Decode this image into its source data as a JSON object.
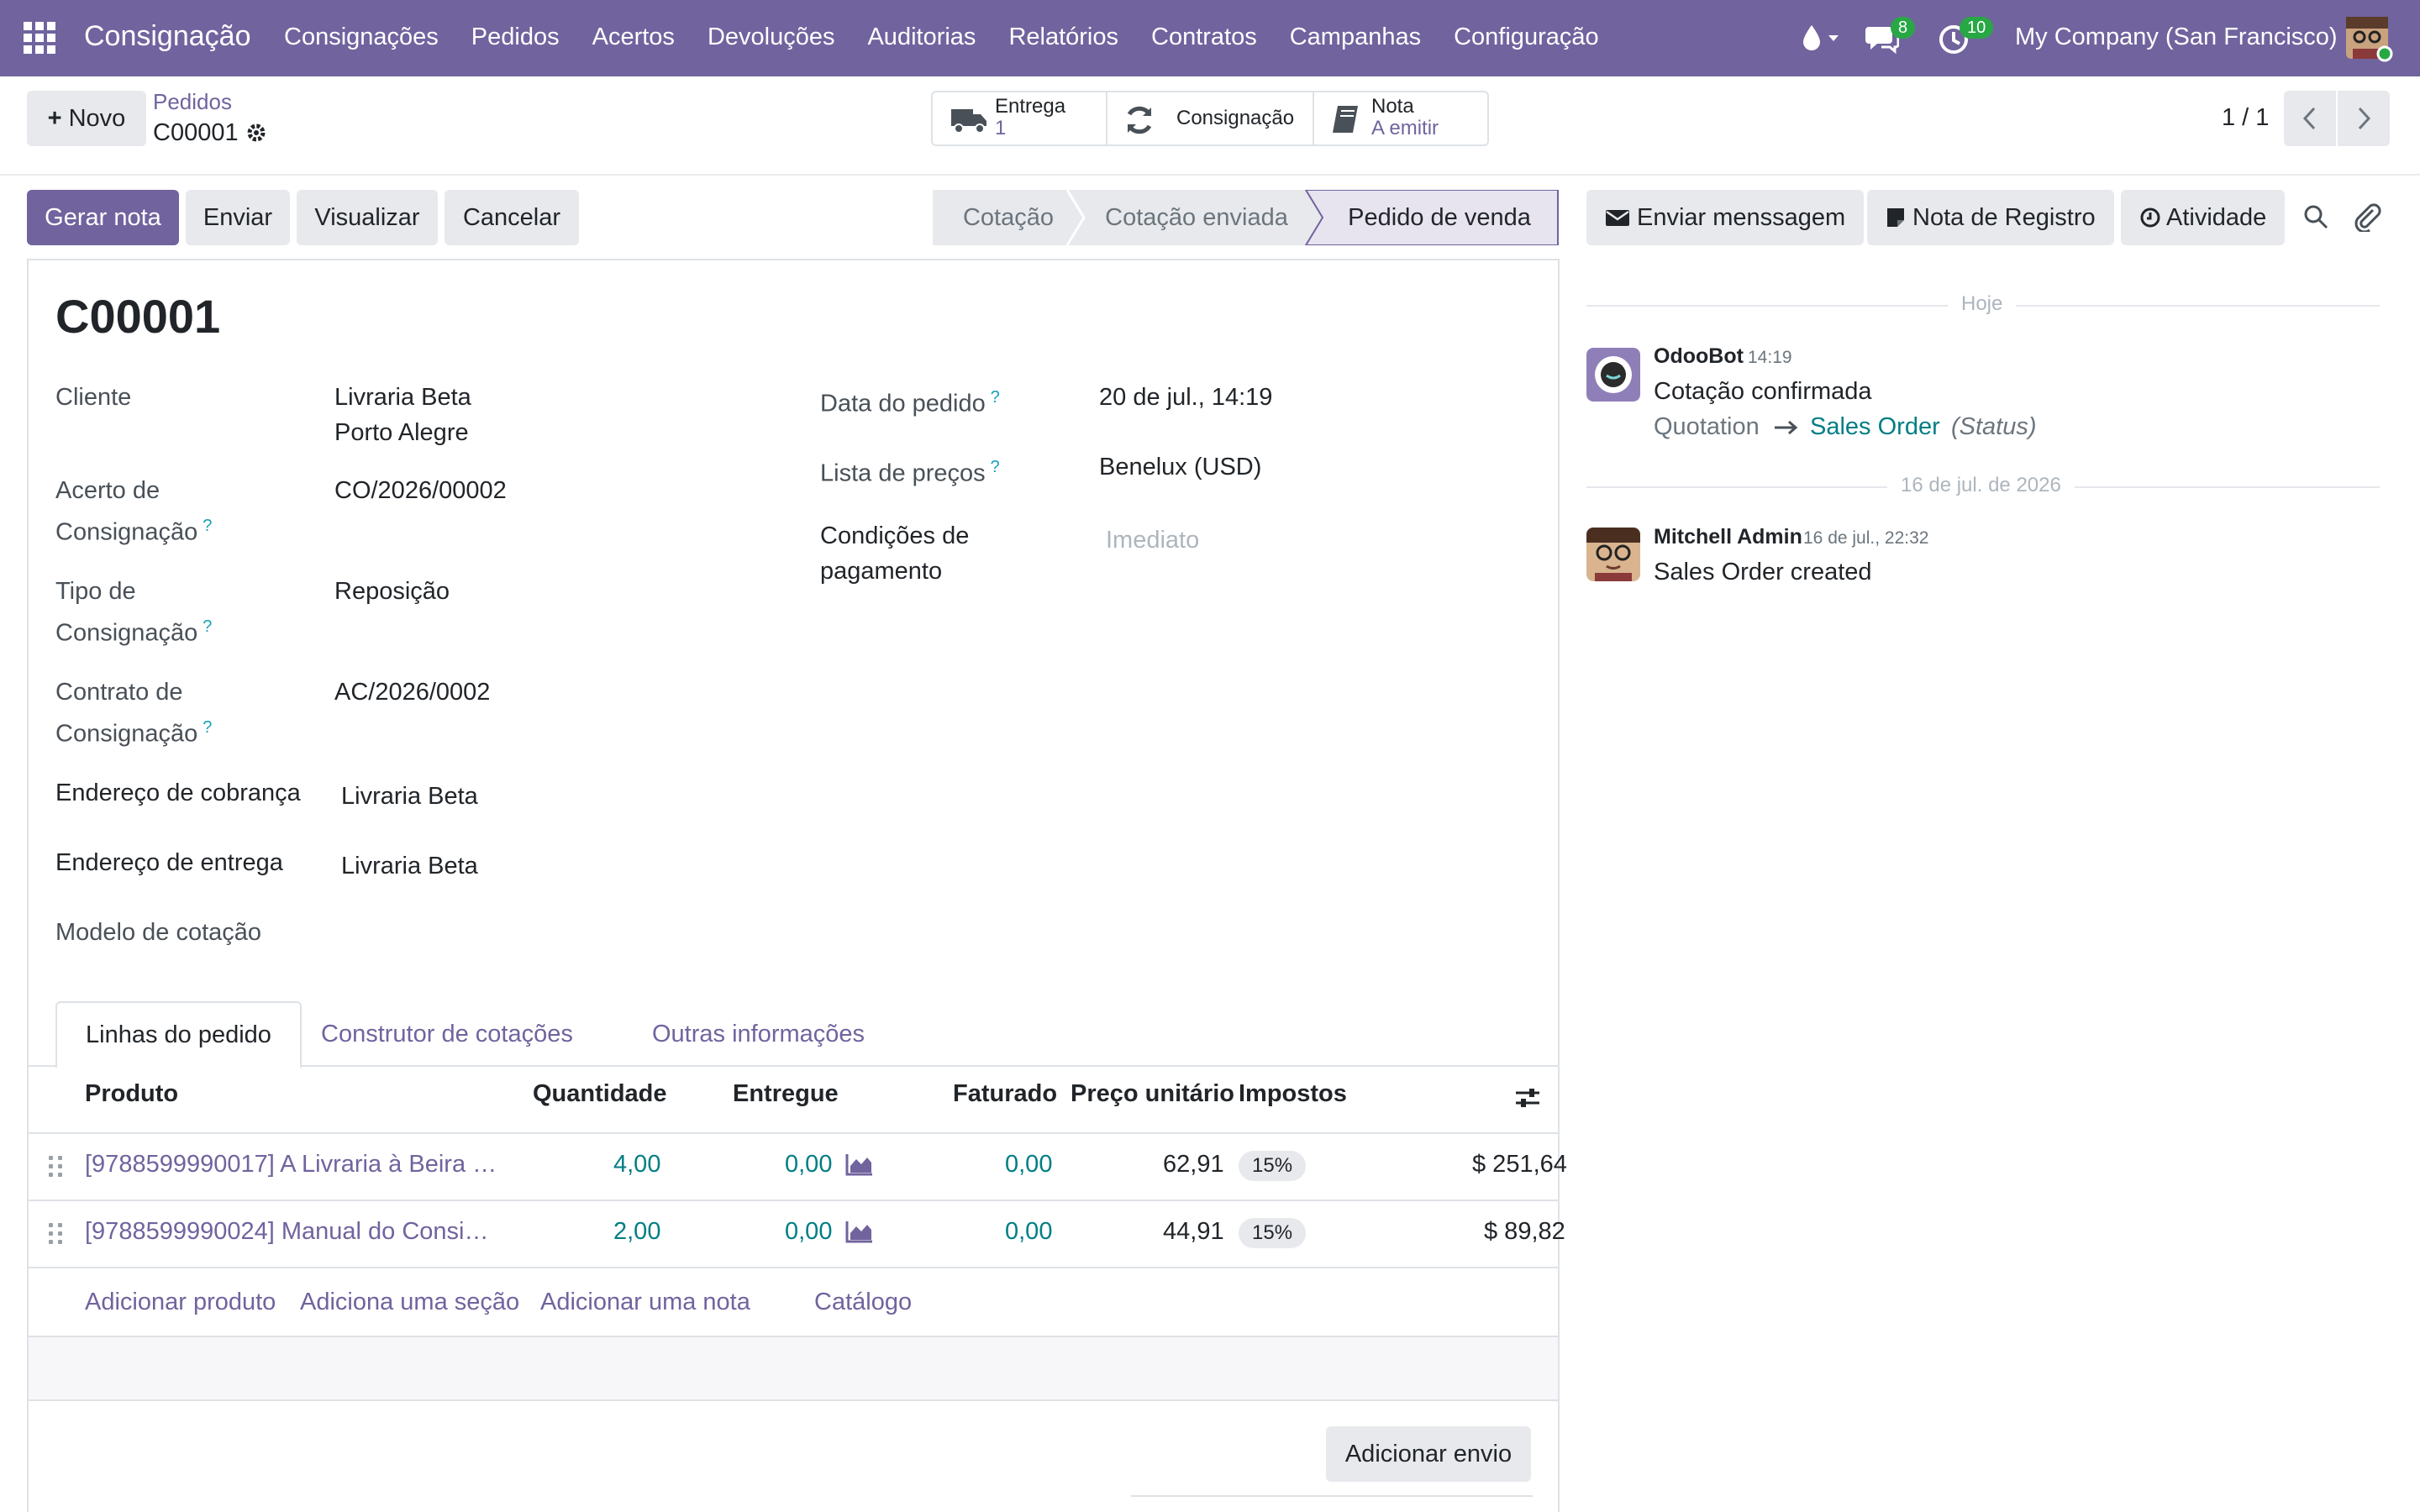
{
  "navbar": {
    "brand": "Consignação",
    "menu": [
      "Consignações",
      "Pedidos",
      "Acertos",
      "Devoluções",
      "Auditorias",
      "Relatórios",
      "Contratos",
      "Campanhas",
      "Configuração"
    ],
    "messages_count": "8",
    "activities_count": "10",
    "company": "My Company (San Francisco)"
  },
  "control": {
    "new_label": "Novo",
    "breadcrumb_parent": "Pedidos",
    "record_name": "C00001",
    "pager": "1 / 1"
  },
  "smart_buttons": {
    "delivery_label": "Entrega",
    "delivery_value": "1",
    "consignment_label": "Consignação",
    "invoice_label": "Nota",
    "invoice_value": "A emitir"
  },
  "actions": {
    "create_invoice": "Gerar nota",
    "send": "Enviar",
    "preview": "Visualizar",
    "cancel": "Cancelar"
  },
  "status": {
    "stages": [
      "Cotação",
      "Cotação enviada",
      "Pedido de venda"
    ],
    "current": "Pedido de venda"
  },
  "form": {
    "title": "C00001",
    "customer_label": "Cliente",
    "customer_name": "Livraria Beta",
    "customer_city": "Porto Alegre",
    "settlement_label_1": "Acerto de",
    "settlement_label_2": "Consignação",
    "settlement_value": "CO/2026/00002",
    "type_label_1": "Tipo de",
    "type_label_2": "Consignação",
    "type_value": "Reposição",
    "contract_label_1": "Contrato de",
    "contract_label_2": "Consignação",
    "contract_value": "AC/2026/0002",
    "invoice_addr_label": "Endereço de cobrança",
    "invoice_addr_value": "Livraria Beta",
    "delivery_addr_label": "Endereço de entrega",
    "delivery_addr_value": "Livraria Beta",
    "template_label": "Modelo de cotação",
    "order_date_label": "Data do pedido",
    "order_date_value": "20 de jul., 14:19",
    "pricelist_label": "Lista de preços",
    "pricelist_value": "Benelux (USD)",
    "payment_terms_label_1": "Condições de",
    "payment_terms_label_2": "pagamento",
    "payment_terms_placeholder": "Imediato",
    "help_mark": "?"
  },
  "tabs": [
    "Linhas do pedido",
    "Construtor de cotações",
    "Outras informações"
  ],
  "table": {
    "headers": {
      "product": "Produto",
      "quantity": "Quantidade",
      "delivered": "Entregue",
      "invoiced": "Faturado",
      "unit_price": "Preço unitário",
      "taxes": "Impostos"
    },
    "rows": [
      {
        "product": "[9788599990017] A Livraria à Beira …",
        "quantity": "4,00",
        "delivered": "0,00",
        "invoiced": "0,00",
        "unit_price": "62,91",
        "tax": "15%",
        "subtotal": "$ 251,64"
      },
      {
        "product": "[9788599990024] Manual do Consi…",
        "quantity": "2,00",
        "delivered": "0,00",
        "invoiced": "0,00",
        "unit_price": "44,91",
        "tax": "15%",
        "subtotal": "$ 89,82"
      }
    ],
    "add_product": "Adicionar produto",
    "add_section": "Adiciona uma seção",
    "add_note": "Adicionar uma nota",
    "catalog": "Catálogo",
    "add_shipping": "Adicionar envio"
  },
  "chatter": {
    "send_message": "Enviar menssagem",
    "log_note": "Nota de Registro",
    "activity": "Atividade",
    "today_label": "Hoje",
    "messages": [
      {
        "author": "OdooBot",
        "time": "14:19",
        "body": "Cotação confirmada",
        "old_value": "Quotation",
        "new_value": "Sales Order",
        "field": "(Status)"
      },
      {
        "author": "Mitchell Admin",
        "time": "16 de jul., 22:32",
        "body": "Sales Order created"
      }
    ],
    "older_date_label": "16 de jul. de 2026"
  },
  "colors": {
    "navbar": "#71639e",
    "link": "#71639e",
    "numeric": "#017e84",
    "badge": "#28a745"
  },
  "icons": [
    "apps-icon",
    "water-drop-icon",
    "chat-icon",
    "clock-icon",
    "gear-icon",
    "truck-icon",
    "refresh-icon",
    "book-icon",
    "envelope-icon",
    "note-icon",
    "clock-circle-icon",
    "search-icon",
    "paperclip-icon",
    "chevron-left-icon",
    "chevron-right-icon",
    "optional-columns-icon",
    "chart-icon",
    "drag-handle-icon"
  ]
}
